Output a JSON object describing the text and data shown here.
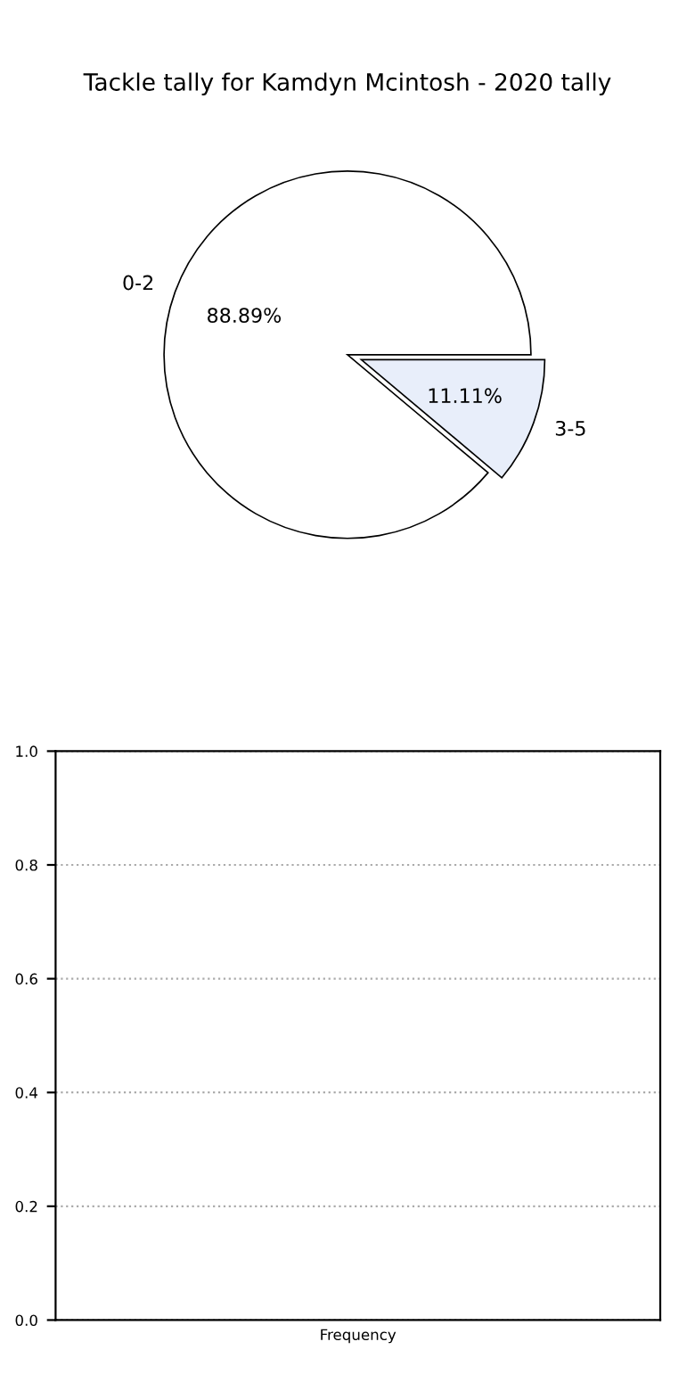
{
  "chart_data": [
    {
      "type": "pie",
      "title": "Tackle tally for Kamdyn Mcintosh - 2020 tally",
      "categories": [
        "0-2",
        "3-5"
      ],
      "values": [
        88.89,
        11.11
      ],
      "colors": [
        "#ffffff",
        "#e8eefa"
      ],
      "value_labels": [
        "88.89%",
        "11.11%"
      ]
    },
    {
      "type": "bar",
      "categories": [
        "Frequency"
      ],
      "values": [
        null
      ],
      "ylim": [
        0,
        1
      ],
      "yticks": [
        {
          "value": 0,
          "label": "0.0"
        },
        {
          "value": 0.2,
          "label": "0.2"
        },
        {
          "value": 0.4,
          "label": "0.4"
        },
        {
          "value": 0.6,
          "label": "0.6"
        },
        {
          "value": 0.8,
          "label": "0.8"
        },
        {
          "value": 1,
          "label": "1.0"
        }
      ],
      "grid": "y",
      "line_style": "dotted"
    }
  ]
}
